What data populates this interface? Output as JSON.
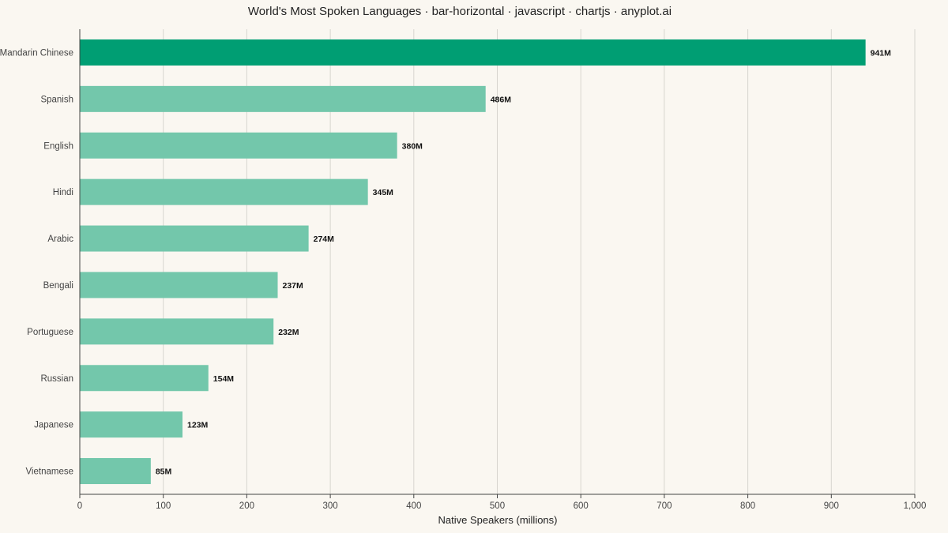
{
  "chart_data": {
    "type": "bar",
    "orientation": "horizontal",
    "title": "World's Most Spoken Languages · bar-horizontal · javascript · chartjs · anyplot.ai",
    "xlabel": "Native Speakers (millions)",
    "ylabel": "",
    "xlim": [
      0,
      1000
    ],
    "x_ticks": [
      0,
      100,
      200,
      300,
      400,
      500,
      600,
      700,
      800,
      900,
      1000
    ],
    "x_tick_labels": [
      "0",
      "100",
      "200",
      "300",
      "400",
      "500",
      "600",
      "700",
      "800",
      "900",
      "1,000"
    ],
    "grid": "vertical",
    "categories": [
      "Mandarin Chinese",
      "Spanish",
      "English",
      "Hindi",
      "Arabic",
      "Bengali",
      "Portuguese",
      "Russian",
      "Japanese",
      "Vietnamese"
    ],
    "values": [
      941,
      486,
      380,
      345,
      274,
      237,
      232,
      154,
      123,
      85
    ],
    "data_labels": [
      "941M",
      "486M",
      "380M",
      "345M",
      "274M",
      "237M",
      "232M",
      "154M",
      "123M",
      "85M"
    ],
    "colors": {
      "highlight": "#009e73",
      "default": "#73c7ab",
      "grid": "#d7d5cf",
      "axis": "#444444",
      "background": "#faf7f1"
    }
  }
}
